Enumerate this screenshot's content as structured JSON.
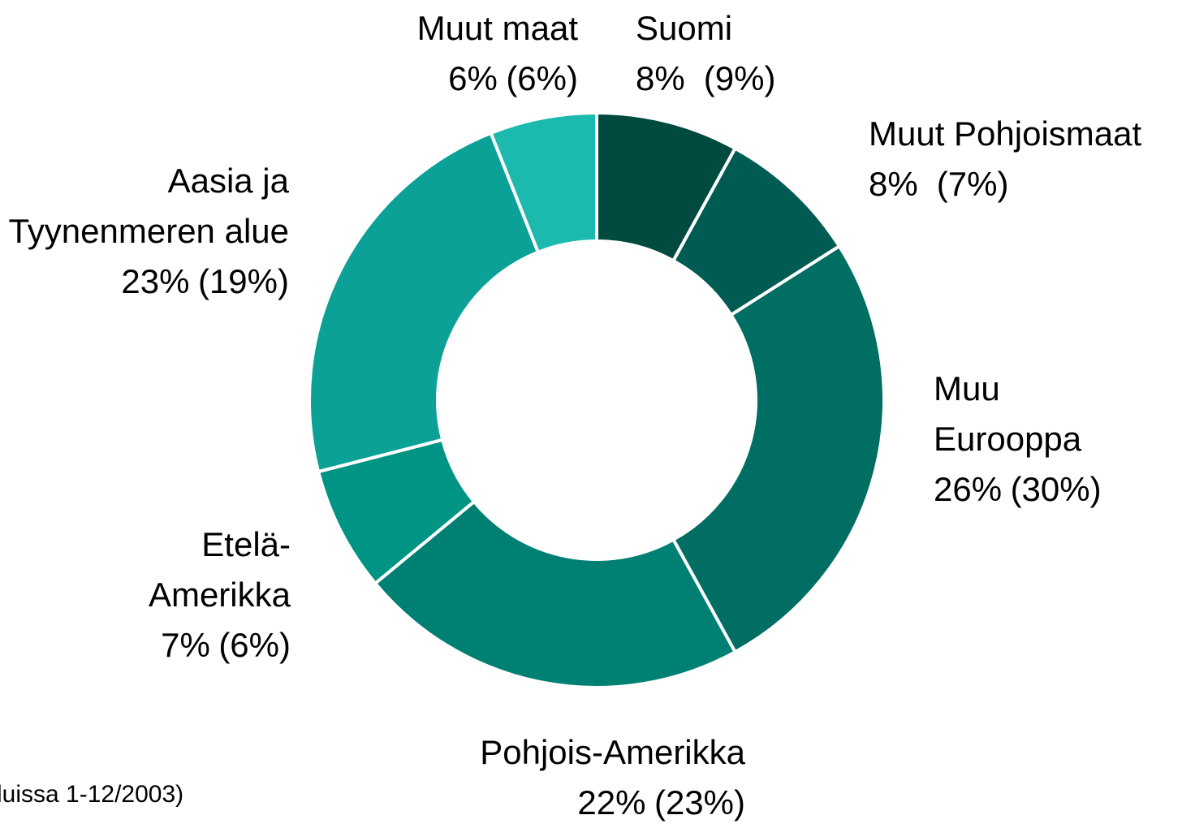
{
  "chart_data": {
    "type": "donut",
    "categories": [
      "Suomi",
      "Muut Pohjoismaat",
      "Muu Eurooppa",
      "Pohjois-Amerikka",
      "Etelä-Amerikka",
      "Aasia ja Tyynenmeren alue",
      "Muut maat"
    ],
    "values": [
      8,
      8,
      26,
      22,
      7,
      23,
      6
    ],
    "value_labels": [
      "8%",
      "8%",
      "26%",
      "22%",
      "7%",
      "23%",
      "6%"
    ],
    "previous_values": [
      9,
      7,
      30,
      23,
      6,
      19,
      6
    ],
    "previous_value_labels": [
      "(9%)",
      "(7%)",
      "(30%)",
      "(23%)",
      "(6%)",
      "(19%)",
      "(6%)"
    ],
    "colors": [
      "#004a40",
      "#005c52",
      "#006e63",
      "#008073",
      "#009485",
      "#0ca196",
      "#1cb9ae"
    ],
    "footnote": "luissa 1-12/2003)"
  }
}
